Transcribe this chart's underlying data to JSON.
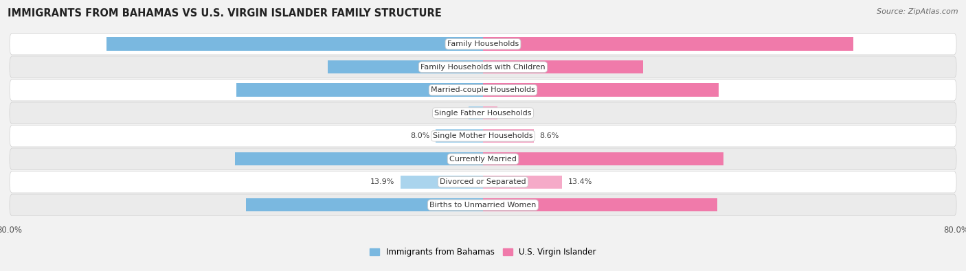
{
  "title": "IMMIGRANTS FROM BAHAMAS VS U.S. VIRGIN ISLANDER FAMILY STRUCTURE",
  "source": "Source: ZipAtlas.com",
  "categories": [
    "Family Households",
    "Family Households with Children",
    "Married-couple Households",
    "Single Father Households",
    "Single Mother Households",
    "Currently Married",
    "Divorced or Separated",
    "Births to Unmarried Women"
  ],
  "bahamas_values": [
    63.6,
    26.3,
    41.7,
    2.4,
    8.0,
    41.9,
    13.9,
    40.1
  ],
  "virgin_values": [
    62.6,
    27.1,
    39.8,
    2.4,
    8.6,
    40.7,
    13.4,
    39.6
  ],
  "bahamas_color": "#7ab8e0",
  "bahamas_color_light": "#aad4ed",
  "virgin_color": "#f07aaa",
  "virgin_color_light": "#f5aac8",
  "axis_max": 80.0,
  "bg_color": "#f2f2f2",
  "row_bg_even": "#ffffff",
  "row_bg_odd": "#ebebeb",
  "label_fontsize": 8.0,
  "title_fontsize": 10.5,
  "source_fontsize": 8.0,
  "legend_fontsize": 8.5,
  "value_threshold": 15.0
}
